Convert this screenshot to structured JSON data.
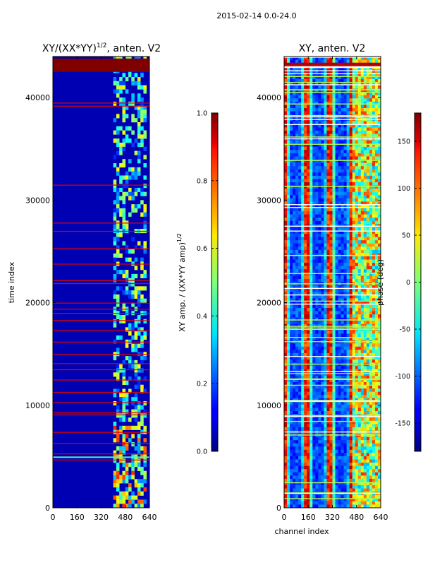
{
  "figure": {
    "suptitle": "2015-02-14 0.0-24.0"
  },
  "chart_data": [
    {
      "type": "heatmap",
      "title_main": "XY/(XX*YY)",
      "title_sup": "1/2",
      "title_rest": ", anten. V2",
      "xlabel": "",
      "ylabel": "time index",
      "xlim": [
        0,
        640
      ],
      "ylim": [
        0,
        44000
      ],
      "xticks": [
        0,
        160,
        320,
        480,
        640
      ],
      "yticks": [
        0,
        10000,
        20000,
        30000,
        40000
      ],
      "colorbar": {
        "label_main": "XY amp. / (XX*YY amp)",
        "label_sup": "1/2",
        "range": [
          0.0,
          1.0
        ],
        "ticks": [
          "0.0",
          "0.2",
          "0.4",
          "0.6",
          "0.8",
          "1.0"
        ],
        "tick_values": [
          0.0,
          0.2,
          0.4,
          0.6,
          0.8,
          1.0
        ],
        "colormap": "jet"
      },
      "description_features": {
        "background_value": 0.05,
        "saturated_band_time_range": [
          42500,
          43800
        ],
        "high_amp_channel_range": [
          400,
          620
        ],
        "flagged_rows_value": 1.0
      }
    },
    {
      "type": "heatmap",
      "title_main": "XY, anten. V2",
      "xlabel": "channel index",
      "ylabel": "",
      "xlim": [
        0,
        640
      ],
      "ylim": [
        0,
        44000
      ],
      "xticks": [
        0,
        160,
        320,
        480,
        640
      ],
      "yticks": [
        0,
        10000,
        20000,
        30000,
        40000
      ],
      "colorbar": {
        "label_main": "phase (deg)",
        "range": [
          -180,
          180
        ],
        "ticks": [
          "-150",
          "-100",
          "-50",
          "0",
          "50",
          "100",
          "150"
        ],
        "tick_values": [
          -150,
          -100,
          -50,
          0,
          50,
          100,
          150
        ],
        "colormap": "jet"
      }
    }
  ]
}
